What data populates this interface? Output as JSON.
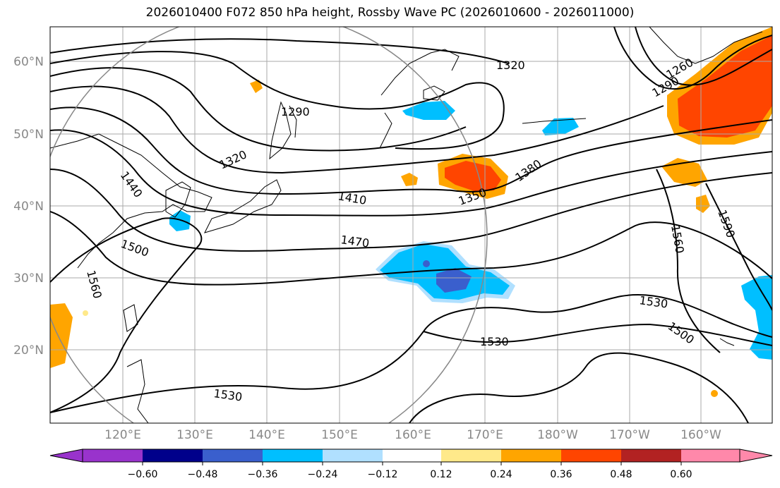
{
  "title": "2026010400 F072 850 hPa height, Rossby Wave PC (2026010600 - 2026011000)",
  "axes": {
    "lon_labels": [
      "120°E",
      "130°E",
      "140°E",
      "150°E",
      "160°E",
      "170°E",
      "180°W",
      "170°W",
      "160°W"
    ],
    "lat_labels": [
      "60°N",
      "50°N",
      "40°N",
      "30°N",
      "20°N"
    ]
  },
  "contour_labels": [
    "1320",
    "1290",
    "1320",
    "1440",
    "1410",
    "1350",
    "1380",
    "1470",
    "1500",
    "1560",
    "1530",
    "1530",
    "1530",
    "1500",
    "1560",
    "1590",
    "1260",
    "1290"
  ],
  "colorbar": {
    "ticks": [
      "−0.60",
      "−0.48",
      "−0.36",
      "−0.24",
      "−0.12",
      "0.12",
      "0.24",
      "0.36",
      "0.48",
      "0.60"
    ],
    "colors": [
      "#9933cc",
      "#00008b",
      "#3a5fcd",
      "#00bfff",
      "#b0e0ff",
      "#ffffff",
      "#ffe98a",
      "#ffa500",
      "#ff4500",
      "#b22222",
      "#ff88aa"
    ]
  },
  "colors": {
    "neg_light": "#b0e0ff",
    "neg_mid": "#00bfff",
    "neg_dark": "#3a5fcd",
    "neg_purple": "#7744cc",
    "pos_light": "#ffe98a",
    "pos_mid": "#ffa500",
    "pos_dark": "#ff4500",
    "contour": "#000000",
    "grid": "#aaaaaa",
    "circle": "#888888"
  }
}
